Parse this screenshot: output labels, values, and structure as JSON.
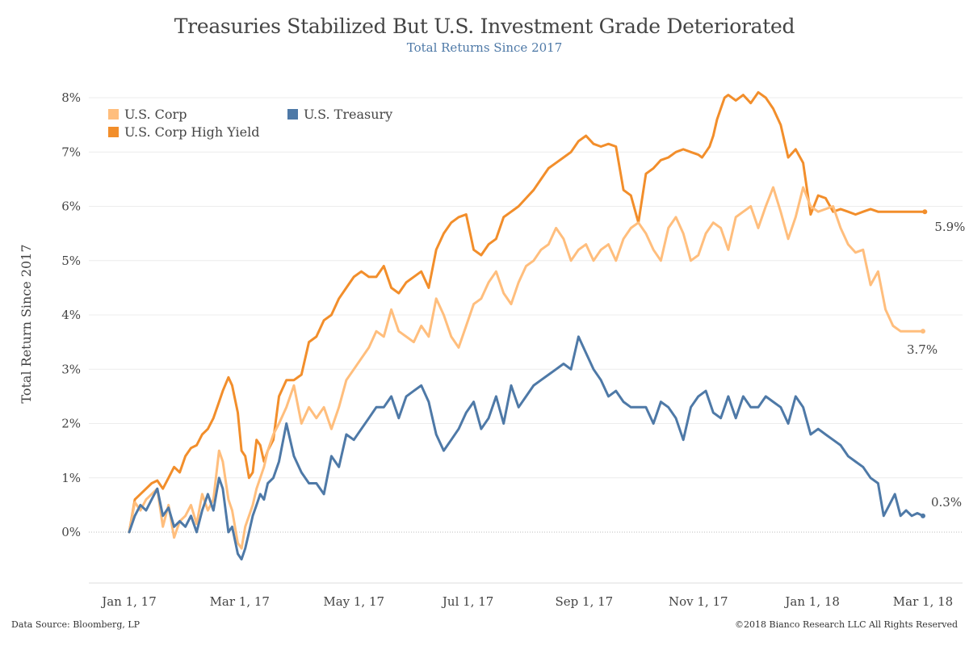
{
  "header": {
    "title": "Treasuries Stabilized But U.S. Investment Grade Deteriorated",
    "subtitle": "Total Returns Since 2017"
  },
  "footer": {
    "source": "Data Source: Bloomberg, LP",
    "copyright": "©2018 Bianco Research LLC  All Rights Reserved"
  },
  "chart_data": {
    "type": "line",
    "title": "Treasuries Stabilized But U.S. Investment Grade Deteriorated",
    "subtitle": "Total Returns Since 2017",
    "xlabel": "",
    "ylabel": "Total Return Since 2017",
    "x_ticks": [
      "Jan 1, 17",
      "Mar 1, 17",
      "May 1, 17",
      "Jul 1, 17",
      "Sep 1, 17",
      "Nov 1, 17",
      "Jan 1, 18",
      "Mar 1, 18"
    ],
    "x_tick_days": [
      0,
      59,
      120,
      181,
      243,
      304,
      365,
      424
    ],
    "x_range_days": [
      -20,
      433
    ],
    "y_ticks": [
      "0%",
      "1%",
      "2%",
      "3%",
      "4%",
      "5%",
      "6%",
      "7%",
      "8%"
    ],
    "y_tick_values": [
      0,
      1,
      2,
      3,
      4,
      5,
      6,
      7,
      8
    ],
    "ylim": [
      -0.95,
      8.5
    ],
    "grid": "horizontal",
    "legend": "top-left",
    "x_unit": "days since Jan 1, 2017",
    "series": [
      {
        "name": "U.S. Corp High Yield",
        "color": "#f28e2b",
        "end_label": "5.9%",
        "x": [
          0,
          3,
          6,
          9,
          12,
          15,
          18,
          21,
          24,
          27,
          30,
          33,
          36,
          39,
          42,
          45,
          48,
          50,
          53,
          55,
          58,
          60,
          62,
          64,
          66,
          68,
          70,
          72,
          74,
          77,
          80,
          84,
          88,
          92,
          96,
          100,
          104,
          108,
          112,
          116,
          120,
          124,
          128,
          132,
          136,
          140,
          144,
          148,
          152,
          156,
          160,
          164,
          168,
          172,
          176,
          180,
          184,
          188,
          192,
          196,
          200,
          204,
          208,
          212,
          216,
          220,
          224,
          228,
          232,
          236,
          240,
          244,
          248,
          252,
          256,
          260,
          264,
          268,
          272,
          276,
          280,
          284,
          288,
          292,
          296,
          300,
          304,
          306,
          308,
          310,
          312,
          314,
          316,
          318,
          320,
          324,
          328,
          332,
          336,
          340,
          344,
          348,
          352,
          356,
          360,
          364,
          368,
          372,
          376,
          380,
          384,
          388,
          392,
          396,
          400,
          402,
          404,
          406,
          408,
          410,
          412,
          414,
          416,
          419,
          422,
          425
        ],
        "values": [
          0.0,
          0.6,
          0.7,
          0.8,
          0.9,
          0.95,
          0.8,
          1.0,
          1.2,
          1.1,
          1.4,
          1.55,
          1.6,
          1.8,
          1.9,
          2.1,
          2.4,
          2.6,
          2.85,
          2.7,
          2.2,
          1.5,
          1.4,
          1.0,
          1.1,
          1.7,
          1.6,
          1.3,
          1.5,
          1.7,
          2.5,
          2.8,
          2.8,
          2.9,
          3.5,
          3.6,
          3.9,
          4.0,
          4.3,
          4.5,
          4.7,
          4.8,
          4.7,
          4.7,
          4.9,
          4.5,
          4.4,
          4.6,
          4.7,
          4.8,
          4.5,
          5.2,
          5.5,
          5.7,
          5.8,
          5.85,
          5.2,
          5.1,
          5.3,
          5.4,
          5.8,
          5.9,
          6.0,
          6.15,
          6.3,
          6.5,
          6.7,
          6.8,
          6.9,
          7.0,
          7.2,
          7.3,
          7.15,
          7.1,
          7.15,
          7.1,
          6.3,
          6.2,
          5.7,
          6.6,
          6.7,
          6.85,
          6.9,
          7.0,
          7.05,
          7.0,
          6.95,
          6.9,
          7.0,
          7.1,
          7.3,
          7.6,
          7.8,
          8.0,
          8.05,
          7.95,
          8.05,
          7.9,
          8.1,
          8.0,
          7.8,
          7.5,
          6.9,
          7.05,
          6.8,
          5.85,
          6.2,
          6.15,
          5.9,
          5.95,
          5.9,
          5.85,
          5.9,
          5.95,
          5.9,
          5.9,
          5.9,
          5.9,
          5.9,
          5.9,
          5.9,
          5.9,
          5.9,
          5.9,
          5.9,
          5.9
        ]
      },
      {
        "name": "U.S. Corp",
        "color": "#ffbe7d",
        "end_label": "3.7%",
        "x": [
          0,
          3,
          6,
          9,
          12,
          15,
          18,
          21,
          24,
          27,
          30,
          33,
          36,
          39,
          42,
          45,
          48,
          50,
          53,
          55,
          58,
          60,
          62,
          64,
          66,
          68,
          70,
          72,
          74,
          77,
          80,
          84,
          88,
          92,
          96,
          100,
          104,
          108,
          112,
          116,
          120,
          124,
          128,
          132,
          136,
          140,
          144,
          148,
          152,
          156,
          160,
          164,
          168,
          172,
          176,
          180,
          184,
          188,
          192,
          196,
          200,
          204,
          208,
          212,
          216,
          220,
          224,
          228,
          232,
          236,
          240,
          244,
          248,
          252,
          256,
          260,
          264,
          268,
          272,
          276,
          280,
          284,
          288,
          292,
          296,
          300,
          304,
          308,
          312,
          316,
          320,
          324,
          328,
          332,
          336,
          340,
          344,
          348,
          352,
          356,
          360,
          364,
          368,
          372,
          376,
          380,
          384,
          388,
          392,
          396,
          400,
          404,
          408,
          412,
          416,
          420,
          424
        ],
        "values": [
          0.0,
          0.55,
          0.4,
          0.6,
          0.7,
          0.8,
          0.1,
          0.5,
          -0.1,
          0.2,
          0.3,
          0.5,
          0.15,
          0.7,
          0.4,
          0.6,
          1.5,
          1.3,
          0.6,
          0.4,
          -0.2,
          -0.3,
          0.1,
          0.3,
          0.5,
          0.8,
          1.0,
          1.2,
          1.5,
          1.8,
          2.0,
          2.3,
          2.7,
          2.0,
          2.3,
          2.1,
          2.3,
          1.9,
          2.3,
          2.8,
          3.0,
          3.2,
          3.4,
          3.7,
          3.6,
          4.1,
          3.7,
          3.6,
          3.5,
          3.8,
          3.6,
          4.3,
          4.0,
          3.6,
          3.4,
          3.8,
          4.2,
          4.3,
          4.6,
          4.8,
          4.4,
          4.2,
          4.6,
          4.9,
          5.0,
          5.2,
          5.3,
          5.6,
          5.4,
          5.0,
          5.2,
          5.3,
          5.0,
          5.2,
          5.3,
          5.0,
          5.4,
          5.6,
          5.7,
          5.5,
          5.2,
          5.0,
          5.6,
          5.8,
          5.5,
          5.0,
          5.1,
          5.5,
          5.7,
          5.6,
          5.2,
          5.8,
          5.9,
          6.0,
          5.6,
          6.0,
          6.35,
          5.9,
          5.4,
          5.8,
          6.35,
          6.0,
          5.9,
          5.95,
          6.0,
          5.6,
          5.3,
          5.15,
          5.2,
          4.55,
          4.8,
          4.1,
          3.8,
          3.7,
          3.7,
          3.7,
          3.7
        ]
      },
      {
        "name": "U.S. Treasury",
        "color": "#4e79a7",
        "end_label": "0.3%",
        "x": [
          0,
          3,
          6,
          9,
          12,
          15,
          18,
          21,
          24,
          27,
          30,
          33,
          36,
          39,
          42,
          45,
          48,
          50,
          53,
          55,
          58,
          60,
          62,
          64,
          66,
          68,
          70,
          72,
          74,
          77,
          80,
          84,
          88,
          92,
          96,
          100,
          104,
          108,
          112,
          116,
          120,
          124,
          128,
          132,
          136,
          140,
          144,
          148,
          152,
          156,
          160,
          164,
          168,
          172,
          176,
          180,
          184,
          188,
          192,
          196,
          200,
          204,
          208,
          212,
          216,
          220,
          224,
          228,
          232,
          236,
          240,
          244,
          248,
          252,
          256,
          260,
          264,
          268,
          272,
          276,
          280,
          284,
          288,
          292,
          296,
          300,
          304,
          308,
          312,
          316,
          320,
          324,
          328,
          332,
          336,
          340,
          344,
          348,
          352,
          356,
          360,
          364,
          368,
          372,
          376,
          380,
          384,
          388,
          392,
          396,
          400,
          403,
          406,
          409,
          412,
          415,
          418,
          421,
          424
        ],
        "values": [
          0.0,
          0.3,
          0.5,
          0.4,
          0.6,
          0.8,
          0.3,
          0.45,
          0.1,
          0.2,
          0.1,
          0.3,
          0.0,
          0.4,
          0.7,
          0.4,
          1.0,
          0.8,
          0.0,
          0.1,
          -0.4,
          -0.5,
          -0.3,
          0.0,
          0.3,
          0.5,
          0.7,
          0.6,
          0.9,
          1.0,
          1.3,
          2.0,
          1.4,
          1.1,
          0.9,
          0.9,
          0.7,
          1.4,
          1.2,
          1.8,
          1.7,
          1.9,
          2.1,
          2.3,
          2.3,
          2.5,
          2.1,
          2.5,
          2.6,
          2.7,
          2.4,
          1.8,
          1.5,
          1.7,
          1.9,
          2.2,
          2.4,
          1.9,
          2.1,
          2.5,
          2.0,
          2.7,
          2.3,
          2.5,
          2.7,
          2.8,
          2.9,
          3.0,
          3.1,
          3.0,
          3.6,
          3.3,
          3.0,
          2.8,
          2.5,
          2.6,
          2.4,
          2.3,
          2.3,
          2.3,
          2.0,
          2.4,
          2.3,
          2.1,
          1.7,
          2.3,
          2.5,
          2.6,
          2.2,
          2.1,
          2.5,
          2.1,
          2.5,
          2.3,
          2.3,
          2.5,
          2.4,
          2.3,
          2.0,
          2.5,
          2.3,
          1.8,
          1.9,
          1.8,
          1.7,
          1.6,
          1.4,
          1.3,
          1.2,
          1.0,
          0.9,
          0.3,
          0.5,
          0.7,
          0.3,
          0.4,
          0.3,
          0.35,
          0.3
        ]
      }
    ],
    "legend_entries": [
      {
        "label": "U.S. Corp",
        "color": "#ffbe7d"
      },
      {
        "label": "U.S. Treasury",
        "color": "#4e79a7"
      },
      {
        "label": "U.S. Corp High Yield",
        "color": "#f28e2b"
      }
    ]
  }
}
